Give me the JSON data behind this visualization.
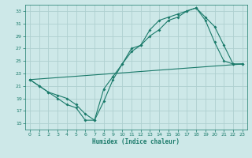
{
  "xlabel": "Humidex (Indice chaleur)",
  "bg_color": "#cde8e8",
  "grid_color": "#aed0d0",
  "line_color": "#1a7a6a",
  "xlim": [
    -0.5,
    23.5
  ],
  "ylim": [
    14,
    34
  ],
  "yticks": [
    15,
    17,
    19,
    21,
    23,
    25,
    27,
    29,
    31,
    33
  ],
  "xticks": [
    0,
    1,
    2,
    3,
    4,
    5,
    6,
    7,
    8,
    9,
    10,
    11,
    12,
    13,
    14,
    15,
    16,
    17,
    18,
    19,
    20,
    21,
    22,
    23
  ],
  "line1_x": [
    0,
    1,
    2,
    3,
    4,
    5,
    6,
    7,
    8,
    9,
    10,
    11,
    12,
    13,
    14,
    15,
    16,
    17,
    18,
    19,
    20,
    21,
    22,
    23
  ],
  "line1_y": [
    22,
    21,
    20,
    19,
    18,
    17.5,
    15.5,
    15.5,
    20.5,
    22.5,
    24.5,
    27,
    27.5,
    29,
    30,
    31.5,
    32,
    33,
    33.5,
    32,
    30.5,
    27.5,
    24.5,
    24.5
  ],
  "line2_x": [
    0,
    1,
    2,
    3,
    4,
    5,
    6,
    7,
    8,
    9,
    10,
    11,
    12,
    13,
    14,
    15,
    16,
    17,
    18,
    19,
    20,
    21,
    22,
    23
  ],
  "line2_y": [
    22,
    21,
    20,
    19.5,
    19,
    18,
    16.5,
    15.5,
    18.5,
    22,
    24.5,
    26.5,
    27.5,
    30,
    31.5,
    32,
    32.5,
    33,
    33.5,
    31.5,
    28,
    25,
    24.5,
    24.5
  ],
  "line3_x": [
    0,
    23
  ],
  "line3_y": [
    22,
    24.5
  ]
}
